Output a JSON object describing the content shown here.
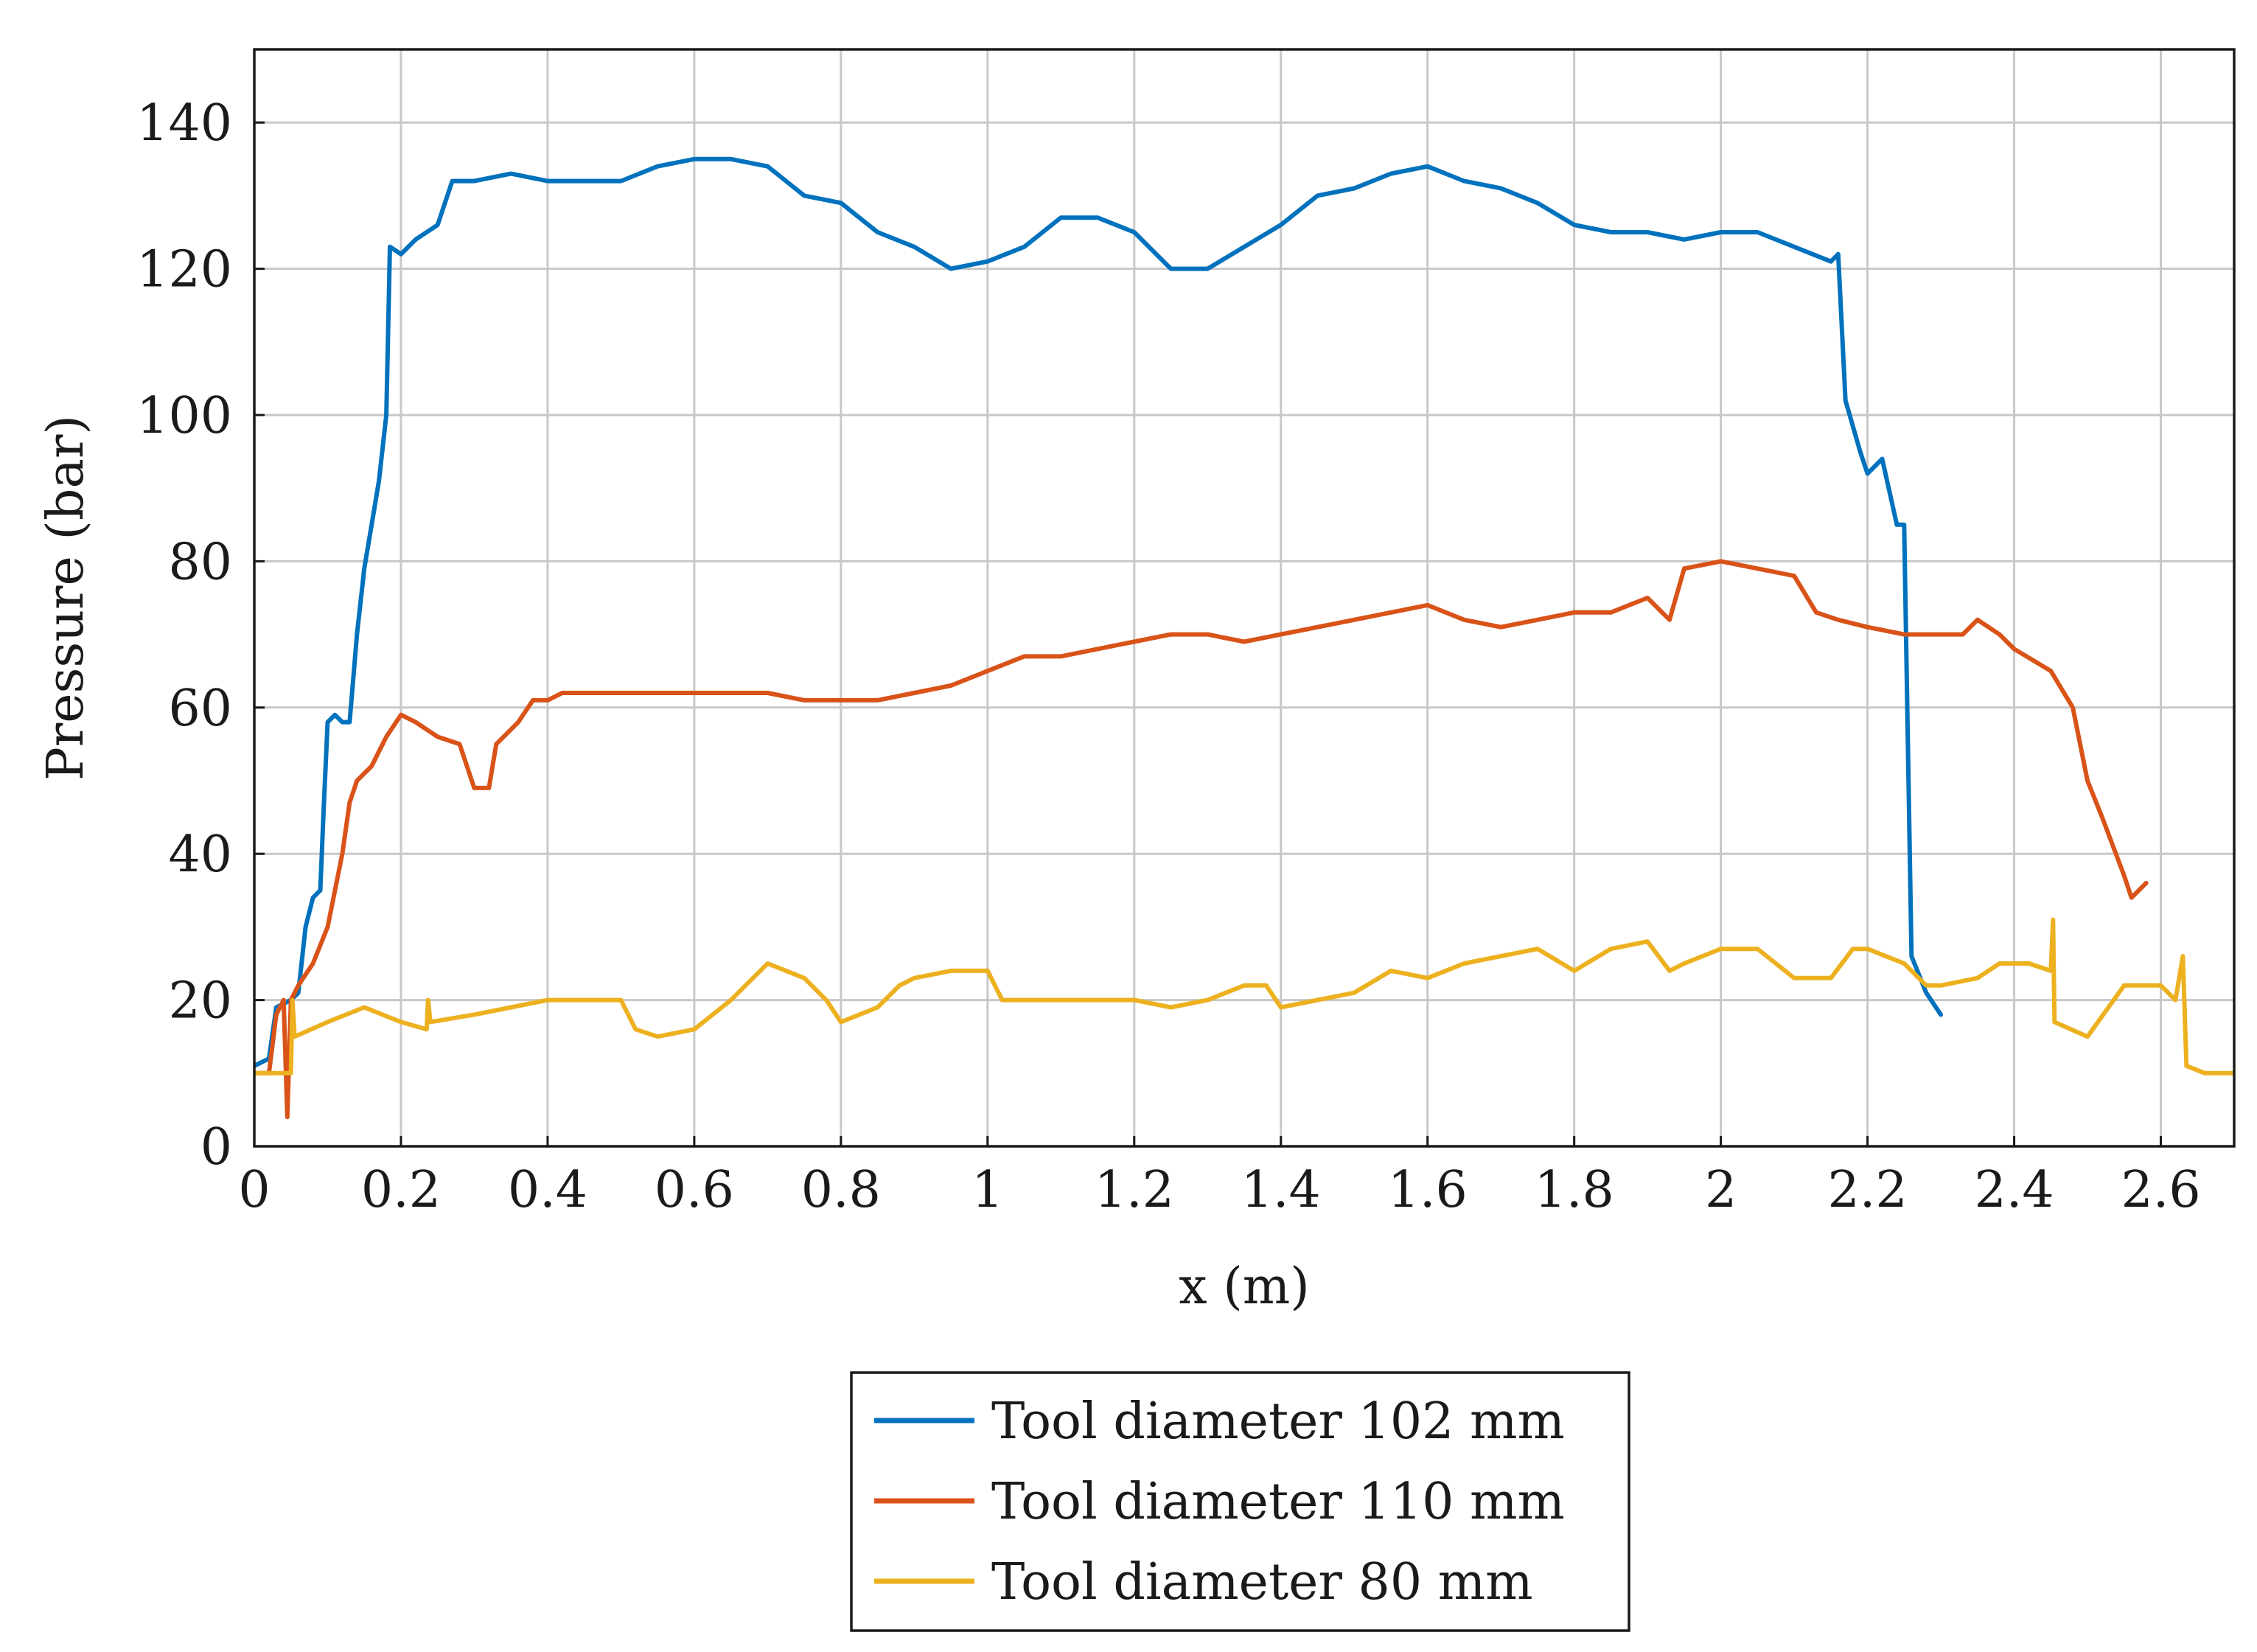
{
  "chart_data": {
    "type": "line",
    "title": "",
    "xlabel": "x (m)",
    "ylabel": "Pressure (bar)",
    "xlim": [
      0,
      2.7
    ],
    "ylim": [
      0,
      150
    ],
    "xticks": [
      0,
      0.2,
      0.4,
      0.6,
      0.8,
      1,
      1.2,
      1.4,
      1.6,
      1.8,
      2,
      2.2,
      2.4,
      2.6
    ],
    "yticks": [
      0,
      20,
      40,
      60,
      80,
      100,
      120,
      140
    ],
    "grid": true,
    "legend_position": "below",
    "series": [
      {
        "name": "Tool diameter 102 mm",
        "color": "#0072bd",
        "points": [
          [
            0,
            11
          ],
          [
            0.02,
            12
          ],
          [
            0.03,
            19
          ],
          [
            0.05,
            20
          ],
          [
            0.06,
            21
          ],
          [
            0.07,
            30
          ],
          [
            0.08,
            34
          ],
          [
            0.09,
            35
          ],
          [
            0.095,
            47
          ],
          [
            0.1,
            58
          ],
          [
            0.11,
            59
          ],
          [
            0.12,
            58
          ],
          [
            0.13,
            58
          ],
          [
            0.14,
            70
          ],
          [
            0.15,
            79
          ],
          [
            0.16,
            85
          ],
          [
            0.17,
            91
          ],
          [
            0.18,
            100
          ],
          [
            0.185,
            123
          ],
          [
            0.2,
            122
          ],
          [
            0.22,
            124
          ],
          [
            0.25,
            126
          ],
          [
            0.27,
            132
          ],
          [
            0.3,
            132
          ],
          [
            0.35,
            133
          ],
          [
            0.4,
            132
          ],
          [
            0.45,
            132
          ],
          [
            0.5,
            132
          ],
          [
            0.55,
            134
          ],
          [
            0.6,
            135
          ],
          [
            0.65,
            135
          ],
          [
            0.7,
            134
          ],
          [
            0.75,
            130
          ],
          [
            0.8,
            129
          ],
          [
            0.85,
            125
          ],
          [
            0.9,
            123
          ],
          [
            0.95,
            120
          ],
          [
            1.0,
            121
          ],
          [
            1.05,
            123
          ],
          [
            1.1,
            127
          ],
          [
            1.15,
            127
          ],
          [
            1.2,
            125
          ],
          [
            1.25,
            120
          ],
          [
            1.3,
            120
          ],
          [
            1.35,
            123
          ],
          [
            1.4,
            126
          ],
          [
            1.45,
            130
          ],
          [
            1.5,
            131
          ],
          [
            1.55,
            133
          ],
          [
            1.6,
            134
          ],
          [
            1.65,
            132
          ],
          [
            1.7,
            131
          ],
          [
            1.75,
            129
          ],
          [
            1.8,
            126
          ],
          [
            1.85,
            125
          ],
          [
            1.9,
            125
          ],
          [
            1.95,
            124
          ],
          [
            2.0,
            125
          ],
          [
            2.05,
            125
          ],
          [
            2.1,
            123
          ],
          [
            2.15,
            121
          ],
          [
            2.16,
            122
          ],
          [
            2.17,
            102
          ],
          [
            2.19,
            95
          ],
          [
            2.2,
            92
          ],
          [
            2.22,
            94
          ],
          [
            2.24,
            85
          ],
          [
            2.25,
            85
          ],
          [
            2.26,
            26
          ],
          [
            2.28,
            21
          ],
          [
            2.3,
            18
          ]
        ]
      },
      {
        "name": "Tool diameter 110 mm",
        "color": "#d95319",
        "points": [
          [
            0,
            10
          ],
          [
            0.02,
            10
          ],
          [
            0.03,
            18
          ],
          [
            0.04,
            20
          ],
          [
            0.045,
            4
          ],
          [
            0.05,
            20
          ],
          [
            0.06,
            22
          ],
          [
            0.08,
            25
          ],
          [
            0.1,
            30
          ],
          [
            0.12,
            40
          ],
          [
            0.13,
            47
          ],
          [
            0.14,
            50
          ],
          [
            0.16,
            52
          ],
          [
            0.18,
            56
          ],
          [
            0.2,
            59
          ],
          [
            0.22,
            58
          ],
          [
            0.25,
            56
          ],
          [
            0.28,
            55
          ],
          [
            0.3,
            49
          ],
          [
            0.32,
            49
          ],
          [
            0.33,
            55
          ],
          [
            0.36,
            58
          ],
          [
            0.38,
            61
          ],
          [
            0.4,
            61
          ],
          [
            0.42,
            62
          ],
          [
            0.45,
            62
          ],
          [
            0.5,
            62
          ],
          [
            0.55,
            62
          ],
          [
            0.6,
            62
          ],
          [
            0.65,
            62
          ],
          [
            0.7,
            62
          ],
          [
            0.75,
            61
          ],
          [
            0.8,
            61
          ],
          [
            0.85,
            61
          ],
          [
            0.9,
            62
          ],
          [
            0.95,
            63
          ],
          [
            1.0,
            65
          ],
          [
            1.05,
            67
          ],
          [
            1.1,
            67
          ],
          [
            1.15,
            68
          ],
          [
            1.2,
            69
          ],
          [
            1.25,
            70
          ],
          [
            1.3,
            70
          ],
          [
            1.35,
            69
          ],
          [
            1.4,
            70
          ],
          [
            1.45,
            71
          ],
          [
            1.5,
            72
          ],
          [
            1.55,
            73
          ],
          [
            1.6,
            74
          ],
          [
            1.65,
            72
          ],
          [
            1.7,
            71
          ],
          [
            1.75,
            72
          ],
          [
            1.8,
            73
          ],
          [
            1.85,
            73
          ],
          [
            1.9,
            75
          ],
          [
            1.93,
            72
          ],
          [
            1.95,
            79
          ],
          [
            2.0,
            80
          ],
          [
            2.05,
            79
          ],
          [
            2.1,
            78
          ],
          [
            2.13,
            73
          ],
          [
            2.16,
            72
          ],
          [
            2.2,
            71
          ],
          [
            2.25,
            70
          ],
          [
            2.3,
            70
          ],
          [
            2.33,
            70
          ],
          [
            2.35,
            72
          ],
          [
            2.38,
            70
          ],
          [
            2.4,
            68
          ],
          [
            2.45,
            65
          ],
          [
            2.48,
            60
          ],
          [
            2.5,
            50
          ],
          [
            2.52,
            45
          ],
          [
            2.55,
            37
          ],
          [
            2.56,
            34
          ],
          [
            2.58,
            36
          ]
        ]
      },
      {
        "name": "Tool diameter 80 mm",
        "color": "#edb120",
        "points": [
          [
            0,
            10
          ],
          [
            0.03,
            10
          ],
          [
            0.05,
            10
          ],
          [
            0.052,
            20
          ],
          [
            0.055,
            15
          ],
          [
            0.1,
            17
          ],
          [
            0.15,
            19
          ],
          [
            0.2,
            17
          ],
          [
            0.235,
            16
          ],
          [
            0.237,
            20
          ],
          [
            0.24,
            17
          ],
          [
            0.3,
            18
          ],
          [
            0.35,
            19
          ],
          [
            0.4,
            20
          ],
          [
            0.45,
            20
          ],
          [
            0.5,
            20
          ],
          [
            0.52,
            16
          ],
          [
            0.55,
            15
          ],
          [
            0.6,
            16
          ],
          [
            0.65,
            20
          ],
          [
            0.7,
            25
          ],
          [
            0.75,
            23
          ],
          [
            0.78,
            20
          ],
          [
            0.8,
            17
          ],
          [
            0.85,
            19
          ],
          [
            0.88,
            22
          ],
          [
            0.9,
            23
          ],
          [
            0.95,
            24
          ],
          [
            1.0,
            24
          ],
          [
            1.02,
            20
          ],
          [
            1.05,
            20
          ],
          [
            1.1,
            20
          ],
          [
            1.15,
            20
          ],
          [
            1.2,
            20
          ],
          [
            1.25,
            19
          ],
          [
            1.3,
            20
          ],
          [
            1.35,
            22
          ],
          [
            1.38,
            22
          ],
          [
            1.4,
            19
          ],
          [
            1.45,
            20
          ],
          [
            1.5,
            21
          ],
          [
            1.55,
            24
          ],
          [
            1.6,
            23
          ],
          [
            1.65,
            25
          ],
          [
            1.7,
            26
          ],
          [
            1.75,
            27
          ],
          [
            1.8,
            24
          ],
          [
            1.85,
            27
          ],
          [
            1.9,
            28
          ],
          [
            1.93,
            24
          ],
          [
            1.95,
            25
          ],
          [
            2.0,
            27
          ],
          [
            2.05,
            27
          ],
          [
            2.1,
            23
          ],
          [
            2.15,
            23
          ],
          [
            2.18,
            27
          ],
          [
            2.2,
            27
          ],
          [
            2.25,
            25
          ],
          [
            2.28,
            22
          ],
          [
            2.3,
            22
          ],
          [
            2.35,
            23
          ],
          [
            2.38,
            25
          ],
          [
            2.42,
            25
          ],
          [
            2.45,
            24
          ],
          [
            2.453,
            31
          ],
          [
            2.455,
            17
          ],
          [
            2.5,
            15
          ],
          [
            2.55,
            22
          ],
          [
            2.6,
            22
          ],
          [
            2.62,
            20
          ],
          [
            2.63,
            26
          ],
          [
            2.635,
            11
          ],
          [
            2.66,
            10
          ],
          [
            2.7,
            10
          ]
        ]
      }
    ]
  }
}
